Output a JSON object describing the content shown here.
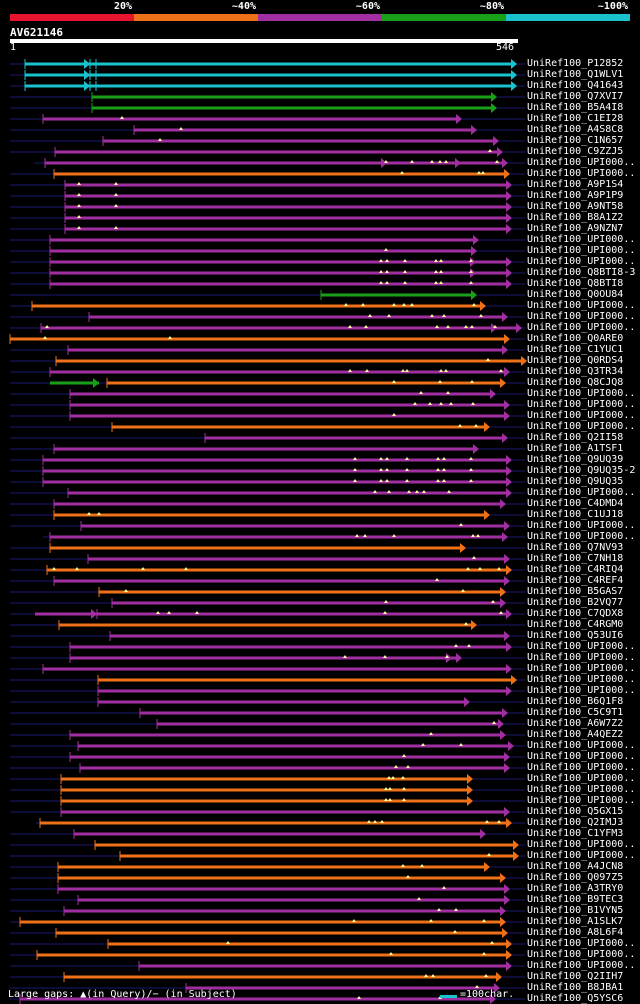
{
  "legend": {
    "segments": [
      {
        "label": "",
        "color": "#e6142d"
      },
      {
        "label": "20%",
        "color": "#e6142d"
      },
      {
        "label": "~40%",
        "color": "#ee7019"
      },
      {
        "label": "~60%",
        "color": "#a22fa2"
      },
      {
        "label": "~80%",
        "color": "#19a019"
      },
      {
        "label": "~100%",
        "color": "#19c2cc"
      }
    ]
  },
  "query": {
    "title": "AV621146",
    "start": "1",
    "end": "546"
  },
  "colors": {
    "cyan": "#19c2cc",
    "green": "#19a019",
    "purple": "#a22fa2",
    "orange": "#ee7019",
    "gap_marker": "#ffffa0",
    "dark_line": "#1a1a6e"
  },
  "hits": [
    {
      "label": "UniRef100_P12852",
      "color": "cyan",
      "start": 15,
      "end": 501,
      "tails": [
        0,
        515
      ],
      "gaps": [],
      "split": [
        80,
        86
      ]
    },
    {
      "label": "UniRef100_Q1WLV1",
      "color": "cyan",
      "start": 15,
      "end": 501,
      "tails": [
        0,
        515
      ],
      "gaps": [],
      "split": [
        80,
        86
      ]
    },
    {
      "label": "UniRef100_Q41643",
      "color": "cyan",
      "start": 15,
      "end": 501,
      "tails": [
        0,
        515
      ],
      "gaps": [],
      "split": [
        80,
        86
      ]
    },
    {
      "label": "UniRef100_Q7XVI7",
      "color": "green",
      "start": 82,
      "end": 481,
      "tails": [
        0,
        515
      ],
      "gaps": []
    },
    {
      "label": "UniRef100_B5A4I8",
      "color": "green",
      "start": 82,
      "end": 481,
      "tails": [
        0,
        515
      ],
      "gaps": []
    },
    {
      "label": "UniRef100_C1EI28",
      "color": "purple",
      "start": 33,
      "end": 446,
      "tails": [
        0,
        515
      ],
      "gaps": [
        112
      ]
    },
    {
      "label": "UniRef100_A4S8C8",
      "color": "purple",
      "start": 124,
      "end": 461,
      "tails": [
        0,
        515
      ],
      "gaps": [
        171
      ]
    },
    {
      "label": "UniRef100_C1N657",
      "color": "purple",
      "start": 93,
      "end": 483,
      "tails": [
        0,
        515
      ],
      "gaps": [
        150
      ]
    },
    {
      "label": "UniRef100_C9ZZJ5",
      "color": "purple",
      "start": 45,
      "end": 487,
      "tails": [
        0,
        515
      ],
      "gaps": [
        480
      ]
    },
    {
      "label": "UniRef100_UPI000..",
      "color": "purple",
      "start": 35,
      "end": 492,
      "tails": [
        24,
        515
      ],
      "gaps": [
        376,
        402,
        422,
        430,
        436,
        487
      ],
      "arrowheads": [
        377,
        451
      ]
    },
    {
      "label": "UniRef100_UPI000..",
      "color": "orange",
      "start": 44,
      "end": 494,
      "tails": [
        0,
        515
      ],
      "gaps": [
        392,
        469,
        473
      ]
    },
    {
      "label": "UniRef100_A9P1S4",
      "color": "purple",
      "start": 55,
      "end": 496,
      "tails": [
        0,
        515
      ],
      "gaps": [
        69,
        106
      ]
    },
    {
      "label": "UniRef100_A9P1P9",
      "color": "purple",
      "start": 55,
      "end": 496,
      "tails": [
        0,
        515
      ],
      "gaps": [
        69,
        106
      ]
    },
    {
      "label": "UniRef100_A9NT58",
      "color": "purple",
      "start": 55,
      "end": 496,
      "tails": [
        0,
        515
      ],
      "gaps": [
        69,
        106
      ]
    },
    {
      "label": "UniRef100_B8A1Z2",
      "color": "purple",
      "start": 55,
      "end": 496,
      "tails": [
        0,
        515
      ],
      "gaps": [
        69
      ]
    },
    {
      "label": "UniRef100_A9NZN7",
      "color": "purple",
      "start": 55,
      "end": 496,
      "tails": [
        0,
        515
      ],
      "gaps": [
        69,
        106
      ]
    },
    {
      "label": "UniRef100_UPI000..",
      "color": "purple",
      "start": 40,
      "end": 463,
      "tails": [
        0,
        515
      ],
      "gaps": []
    },
    {
      "label": "UniRef100_UPI000..",
      "color": "purple",
      "start": 40,
      "end": 461,
      "tails": [
        0,
        515
      ],
      "gaps": [
        376
      ]
    },
    {
      "label": "UniRef100_UPI000..",
      "color": "purple",
      "start": 40,
      "end": 496,
      "tails": [
        0,
        515
      ],
      "gaps": [
        371,
        377,
        395,
        426,
        431,
        461
      ],
      "arrowheads": [
        466
      ]
    },
    {
      "label": "UniRef100_Q8BTI8-3",
      "color": "purple",
      "start": 40,
      "end": 496,
      "tails": [
        0,
        515
      ],
      "gaps": [
        371,
        377,
        395,
        426,
        431,
        461
      ],
      "arrowheads": [
        466
      ]
    },
    {
      "label": "UniRef100_Q8BTI8",
      "color": "purple",
      "start": 40,
      "end": 496,
      "tails": [
        0,
        515
      ],
      "gaps": [
        371,
        377,
        395,
        426,
        431,
        461
      ]
    },
    {
      "label": "UniRef100_Q0OU84",
      "color": "green",
      "start": 311,
      "end": 461,
      "tails": [
        0,
        515
      ],
      "gaps": []
    },
    {
      "label": "UniRef100_UPI000..",
      "color": "orange",
      "start": 22,
      "end": 470,
      "tails": [
        0,
        515
      ],
      "gaps": [
        336,
        353,
        384,
        394,
        402,
        464
      ]
    },
    {
      "label": "UniRef100_UPI000..",
      "color": "purple",
      "start": 79,
      "end": 492,
      "tails": [
        0,
        515
      ],
      "gaps": [
        360,
        379,
        422,
        434,
        471
      ]
    },
    {
      "label": "UniRef100_UPI000..",
      "color": "purple",
      "start": 31,
      "end": 506,
      "tails": [
        0,
        515
      ],
      "gaps": [
        37,
        340,
        356,
        427,
        438,
        456,
        462,
        485
      ],
      "arrowheads": [
        487
      ]
    },
    {
      "label": "UniRef100_Q0ARE0",
      "color": "orange",
      "start": 0,
      "end": 494,
      "tails": [
        0,
        515
      ],
      "gaps": [
        35,
        160
      ]
    },
    {
      "label": "UniRef100_C1YUC1",
      "color": "purple",
      "start": 58,
      "end": 492,
      "tails": [
        0,
        515
      ],
      "gaps": []
    },
    {
      "label": "UniRef100_Q0RDS4",
      "color": "orange",
      "start": 46,
      "end": 511,
      "tails": [
        0,
        515
      ],
      "gaps": [
        478
      ]
    },
    {
      "label": "UniRef100_Q3TR34",
      "color": "purple",
      "start": 40,
      "end": 494,
      "tails": [
        0,
        515
      ],
      "gaps": [
        340,
        357,
        393,
        397,
        431,
        436,
        491
      ]
    },
    {
      "label": "UniRef100_Q8CJQ8",
      "color": "orange",
      "start": 97,
      "end": 490,
      "tails": [
        0,
        515
      ],
      "gaps": [
        384,
        430,
        462
      ],
      "extra": {
        "color": "green",
        "start": 40,
        "end": 89
      }
    },
    {
      "label": "UniRef100_UPI000..",
      "color": "purple",
      "start": 60,
      "end": 480,
      "tails": [
        0,
        515
      ],
      "gaps": [
        411,
        438
      ]
    },
    {
      "label": "UniRef100_UPI000..",
      "color": "purple",
      "start": 60,
      "end": 494,
      "tails": [
        0,
        515
      ],
      "gaps": [
        405,
        420,
        431,
        441,
        463
      ]
    },
    {
      "label": "UniRef100_UPI000..",
      "color": "purple",
      "start": 60,
      "end": 494,
      "tails": [
        0,
        515
      ],
      "gaps": [
        384
      ]
    },
    {
      "label": "UniRef100_UPI000..",
      "color": "orange",
      "start": 102,
      "end": 474,
      "tails": [
        0,
        515
      ],
      "gaps": [
        450,
        466
      ]
    },
    {
      "label": "UniRef100_Q2II58",
      "color": "purple",
      "start": 195,
      "end": 492,
      "tails": [
        0,
        515
      ],
      "gaps": []
    },
    {
      "label": "UniRef100_A1TSF1",
      "color": "purple",
      "start": 44,
      "end": 463,
      "tails": [
        0,
        515
      ],
      "gaps": []
    },
    {
      "label": "UniRef100_Q9UQ39",
      "color": "purple",
      "start": 33,
      "end": 496,
      "tails": [
        0,
        515
      ],
      "gaps": [
        345,
        371,
        377,
        397,
        428,
        434,
        461
      ]
    },
    {
      "label": "UniRef100_Q9UQ35-2",
      "color": "purple",
      "start": 33,
      "end": 496,
      "tails": [
        0,
        515
      ],
      "gaps": [
        345,
        371,
        377,
        397,
        428,
        434,
        461
      ]
    },
    {
      "label": "UniRef100_Q9UQ35",
      "color": "purple",
      "start": 33,
      "end": 496,
      "tails": [
        0,
        515
      ],
      "gaps": [
        345,
        371,
        377,
        397,
        428,
        434,
        461
      ]
    },
    {
      "label": "UniRef100_UPI000..",
      "color": "purple",
      "start": 58,
      "end": 496,
      "tails": [
        0,
        515
      ],
      "gaps": [
        365,
        379,
        399,
        407,
        414,
        439
      ]
    },
    {
      "label": "UniRef100_C4DMD4",
      "color": "purple",
      "start": 44,
      "end": 490,
      "tails": [
        0,
        515
      ],
      "gaps": []
    },
    {
      "label": "UniRef100_C1UJ18",
      "color": "orange",
      "start": 44,
      "end": 474,
      "tails": [
        0,
        515
      ],
      "gaps": [
        79,
        89
      ]
    },
    {
      "label": "UniRef100_UPI000..",
      "color": "purple",
      "start": 71,
      "end": 494,
      "tails": [
        0,
        515
      ],
      "gaps": [
        451
      ]
    },
    {
      "label": "UniRef100_UPI000..",
      "color": "purple",
      "start": 40,
      "end": 492,
      "tails": [
        33,
        515
      ],
      "gaps": [
        347,
        355,
        384,
        463,
        468
      ]
    },
    {
      "label": "UniRef100_Q7NV93",
      "color": "orange",
      "start": 40,
      "end": 450,
      "tails": [
        0,
        515
      ],
      "gaps": []
    },
    {
      "label": "UniRef100_C7NH18",
      "color": "purple",
      "start": 78,
      "end": 494,
      "tails": [
        0,
        515
      ],
      "gaps": [
        464
      ]
    },
    {
      "label": "UniRef100_C4RIQ4",
      "color": "orange",
      "start": 37,
      "end": 496,
      "tails": [
        0,
        515
      ],
      "gaps": [
        44,
        67,
        133,
        176,
        458,
        470,
        489
      ]
    },
    {
      "label": "UniRef100_C4REF4",
      "color": "purple",
      "start": 44,
      "end": 494,
      "tails": [
        0,
        515
      ],
      "gaps": [
        427
      ]
    },
    {
      "label": "UniRef100_B5GAS7",
      "color": "orange",
      "start": 89,
      "end": 490,
      "tails": [
        0,
        515
      ],
      "gaps": [
        116,
        453
      ]
    },
    {
      "label": "UniRef100_B2VQ77",
      "color": "purple",
      "start": 102,
      "end": 490,
      "tails": [
        0,
        515
      ],
      "gaps": [
        376,
        483
      ]
    },
    {
      "label": "UniRef100_C7QDX8",
      "color": "purple",
      "start": 87,
      "end": 496,
      "tails": [
        0,
        515
      ],
      "gaps": [
        148,
        159,
        187,
        375,
        491
      ],
      "extra": {
        "color": "purple",
        "start": 25,
        "end": 87
      }
    },
    {
      "label": "UniRef100_C4RGM0",
      "color": "orange",
      "start": 49,
      "end": 461,
      "tails": [
        0,
        515
      ],
      "gaps": [
        456
      ]
    },
    {
      "label": "UniRef100_Q53UI6",
      "color": "purple",
      "start": 100,
      "end": 494,
      "tails": [
        0,
        515
      ],
      "gaps": []
    },
    {
      "label": "UniRef100_UPI000..",
      "color": "purple",
      "start": 60,
      "end": 496,
      "tails": [
        0,
        515
      ],
      "gaps": [
        446,
        459
      ]
    },
    {
      "label": "UniRef100_UPI000..",
      "color": "purple",
      "start": 60,
      "end": 446,
      "tails": [
        0,
        515
      ],
      "gaps": [
        335,
        375,
        437
      ],
      "arrowheads": [
        442
      ]
    },
    {
      "label": "UniRef100_UPI000..",
      "color": "purple",
      "start": 33,
      "end": 496,
      "tails": [
        0,
        515
      ],
      "gaps": []
    },
    {
      "label": "UniRef100_UPI000..",
      "color": "orange",
      "start": 88,
      "end": 501,
      "tails": [
        0,
        515
      ],
      "gaps": []
    },
    {
      "label": "UniRef100_UPI000..",
      "color": "purple",
      "start": 88,
      "end": 496,
      "tails": [
        0,
        515
      ],
      "gaps": []
    },
    {
      "label": "UniRef100_B6Q1F8",
      "color": "purple",
      "start": 88,
      "end": 454,
      "tails": [
        0,
        515
      ],
      "gaps": []
    },
    {
      "label": "UniRef100_C5C9T1",
      "color": "purple",
      "start": 130,
      "end": 492,
      "tails": [
        0,
        515
      ],
      "gaps": []
    },
    {
      "label": "UniRef100_A6W7Z2",
      "color": "purple",
      "start": 147,
      "end": 488,
      "tails": [
        0,
        515
      ],
      "gaps": [
        484
      ]
    },
    {
      "label": "UniRef100_A4QEZ2",
      "color": "purple",
      "start": 60,
      "end": 490,
      "tails": [
        0,
        515
      ],
      "gaps": [
        421
      ]
    },
    {
      "label": "UniRef100_UPI000..",
      "color": "purple",
      "start": 68,
      "end": 498,
      "tails": [
        0,
        515
      ],
      "gaps": [
        413,
        451
      ]
    },
    {
      "label": "UniRef100_UPI000..",
      "color": "purple",
      "start": 60,
      "end": 494,
      "tails": [
        0,
        515
      ],
      "gaps": [
        394
      ]
    },
    {
      "label": "UniRef100_UPI000..",
      "color": "purple",
      "start": 70,
      "end": 494,
      "tails": [
        0,
        515
      ],
      "gaps": [
        386,
        398
      ]
    },
    {
      "label": "UniRef100_UPI000..",
      "color": "orange",
      "start": 51,
      "end": 457,
      "tails": [
        0,
        515
      ],
      "gaps": [
        379,
        383,
        393
      ]
    },
    {
      "label": "UniRef100_UPI000..",
      "color": "orange",
      "start": 51,
      "end": 457,
      "tails": [
        0,
        515
      ],
      "gaps": [
        376,
        380,
        394
      ]
    },
    {
      "label": "UniRef100_UPI000..",
      "color": "orange",
      "start": 51,
      "end": 457,
      "tails": [
        0,
        515
      ],
      "gaps": [
        376,
        380,
        394
      ]
    },
    {
      "label": "UniRef100_Q5GX15",
      "color": "purple",
      "start": 51,
      "end": 494,
      "tails": [
        0,
        515
      ],
      "gaps": []
    },
    {
      "label": "UniRef100_Q2IMJ3",
      "color": "orange",
      "start": 30,
      "end": 496,
      "tails": [
        26,
        515
      ],
      "gaps": [
        359,
        365,
        372,
        477,
        489
      ]
    },
    {
      "label": "UniRef100_C1YFM3",
      "color": "purple",
      "start": 64,
      "end": 470,
      "tails": [
        0,
        515
      ],
      "gaps": []
    },
    {
      "label": "UniRef100_UPI000..",
      "color": "orange",
      "start": 85,
      "end": 503,
      "tails": [
        0,
        515
      ],
      "gaps": []
    },
    {
      "label": "UniRef100_UPI000..",
      "color": "orange",
      "start": 110,
      "end": 503,
      "tails": [
        0,
        515
      ],
      "gaps": [
        479
      ]
    },
    {
      "label": "UniRef100_A4JCN8",
      "color": "orange",
      "start": 48,
      "end": 474,
      "tails": [
        0,
        515
      ],
      "gaps": [
        393,
        412
      ]
    },
    {
      "label": "UniRef100_Q097Z5",
      "color": "orange",
      "start": 48,
      "end": 490,
      "tails": [
        0,
        515
      ],
      "gaps": [
        398
      ]
    },
    {
      "label": "UniRef100_A3TRY0",
      "color": "purple",
      "start": 48,
      "end": 494,
      "tails": [
        0,
        515
      ],
      "gaps": [
        434
      ]
    },
    {
      "label": "UniRef100_B9TEC3",
      "color": "purple",
      "start": 68,
      "end": 494,
      "tails": [
        0,
        515
      ],
      "gaps": [
        409
      ]
    },
    {
      "label": "UniRef100_B1VYN5",
      "color": "purple",
      "start": 54,
      "end": 490,
      "tails": [
        0,
        515
      ],
      "gaps": [
        429,
        446
      ]
    },
    {
      "label": "UniRef100_A1SLK7",
      "color": "orange",
      "start": 10,
      "end": 490,
      "tails": [
        0,
        515
      ],
      "gaps": [
        344,
        421,
        474
      ]
    },
    {
      "label": "UniRef100_A8L6F4",
      "color": "orange",
      "start": 46,
      "end": 492,
      "tails": [
        0,
        515
      ],
      "gaps": [
        445
      ]
    },
    {
      "label": "UniRef100_UPI000..",
      "color": "orange",
      "start": 98,
      "end": 496,
      "tails": [
        0,
        515
      ],
      "gaps": [
        218,
        482
      ]
    },
    {
      "label": "UniRef100_UPI000..",
      "color": "orange",
      "start": 27,
      "end": 496,
      "tails": [
        0,
        515
      ],
      "gaps": [
        381,
        474
      ]
    },
    {
      "label": "UniRef100_UPI000..",
      "color": "purple",
      "start": 129,
      "end": 496,
      "tails": [
        0,
        515
      ],
      "gaps": []
    },
    {
      "label": "UniRef100_Q2IIH7",
      "color": "orange",
      "start": 54,
      "end": 486,
      "tails": [
        0,
        515
      ],
      "gaps": [
        416,
        423,
        476
      ]
    },
    {
      "label": "UniRef100_B8JBA1",
      "color": "purple",
      "start": 176,
      "end": 484,
      "tails": [
        0,
        515
      ],
      "gaps": [
        467
      ]
    },
    {
      "label": "UniRef100_Q5YSC6",
      "color": "purple",
      "start": 10,
      "end": 480,
      "tails": [
        0,
        515
      ],
      "gaps": [
        349,
        430
      ]
    }
  ],
  "footer": {
    "text": "Large gaps: ▲(in Query)/− (in Subject)",
    "scale_text": "=100char."
  }
}
